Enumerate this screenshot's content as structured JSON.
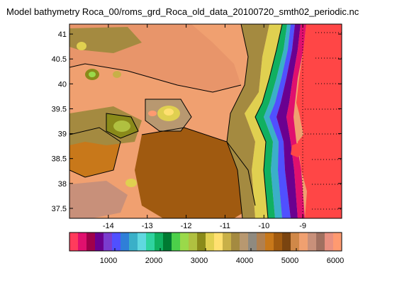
{
  "figure": {
    "title": "Model bathymetry Roca_00/roms_grd_Roca_old_data_20100720_smth02_periodic.nc"
  },
  "chart_data": {
    "type": "heatmap",
    "title": "Model bathymetry Roca_00/roms_grd_Roca_old_data_20100720_smth02_periodic.nc",
    "xlabel": "",
    "ylabel": "",
    "xlim": [
      -15,
      -8
    ],
    "ylim": [
      37.3,
      41.2
    ],
    "x_ticks": [
      {
        "value": -14,
        "label": "-14"
      },
      {
        "value": -13,
        "label": "-13"
      },
      {
        "value": -12,
        "label": "-12"
      },
      {
        "value": -11,
        "label": "-11"
      },
      {
        "value": -10,
        "label": "-10"
      },
      {
        "value": -9,
        "label": "-9"
      }
    ],
    "y_ticks": [
      {
        "value": 37.5,
        "label": "37.5"
      },
      {
        "value": 38,
        "label": "38"
      },
      {
        "value": 38.5,
        "label": "38.5"
      },
      {
        "value": 39,
        "label": "39"
      },
      {
        "value": 39.5,
        "label": "39.5"
      },
      {
        "value": 40,
        "label": "40"
      },
      {
        "value": 40.5,
        "label": "40.5"
      },
      {
        "value": 41,
        "label": "41"
      }
    ],
    "colorbar": {
      "range": [
        0,
        6000
      ],
      "ticks": [
        {
          "value": 1000,
          "label": "1000"
        },
        {
          "value": 2000,
          "label": "2000"
        },
        {
          "value": 3000,
          "label": "3000"
        },
        {
          "value": 4000,
          "label": "4000"
        },
        {
          "value": 5000,
          "label": "5000"
        },
        {
          "value": 6000,
          "label": "6000"
        }
      ],
      "colors": [
        "#ff3b5c",
        "#e0106e",
        "#a0004a",
        "#6a0090",
        "#7a3ccf",
        "#5050ff",
        "#2f7fd8",
        "#3ab0c8",
        "#60d8e0",
        "#2fd3a0",
        "#10b060",
        "#007a32",
        "#4cd04a",
        "#9ad94a",
        "#b0c040",
        "#8a8a1a",
        "#e0d050",
        "#ffe070",
        "#c8b048",
        "#a48a40",
        "#b89870",
        "#8f8a80",
        "#b08050",
        "#c8781a",
        "#a05a10",
        "#7a4410",
        "#d08848",
        "#f0a070",
        "#c8907a",
        "#a07060",
        "#e89080",
        "#ff9a70"
      ]
    },
    "grid": "dotted, east side only",
    "land_color": "#ff4646"
  }
}
